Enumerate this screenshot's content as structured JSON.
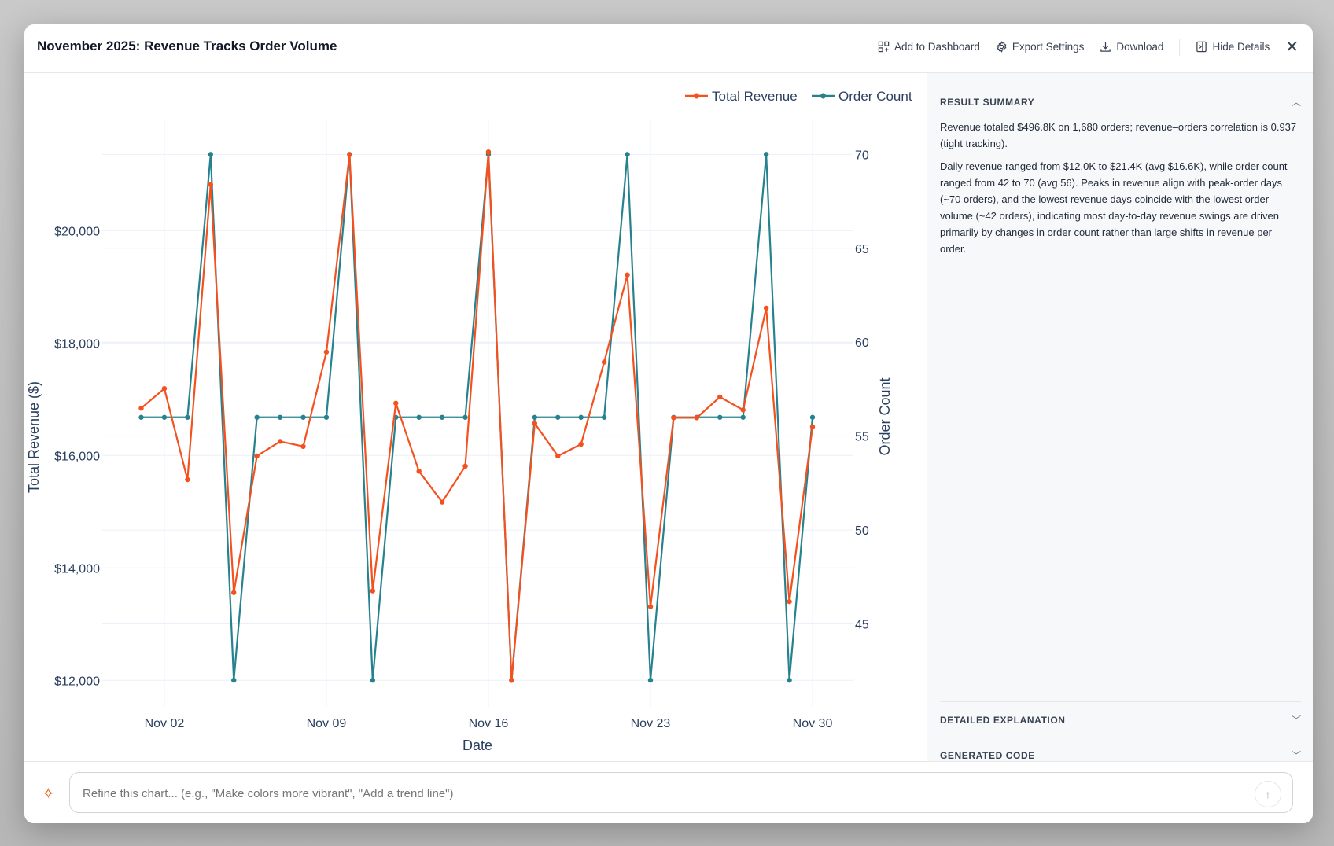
{
  "modal": {
    "title": "November 2025: Revenue Tracks Order Volume",
    "actions": {
      "add_to_dashboard": "Add to Dashboard",
      "export_settings": "Export Settings",
      "download": "Download",
      "hide_details": "Hide Details"
    },
    "close_icon": "close-icon"
  },
  "sidebar": {
    "result_summary": {
      "heading": "RESULT SUMMARY",
      "paragraphs": [
        "Revenue totaled $496.8K on 1,680 orders; revenue–orders correlation is 0.937 (tight tracking).",
        "Daily revenue ranged from $12.0K to $21.4K (avg $16.6K), while order count ranged from 42 to 70 (avg 56). Peaks in revenue align with peak-order days (~70 orders), and the lowest revenue days coincide with the lowest order volume (~42 orders), indicating most day-to-day revenue swings are driven primarily by changes in order count rather than large shifts in revenue per order."
      ]
    },
    "detailed_explanation": "DETAILED EXPLANATION",
    "generated_code": "GENERATED CODE"
  },
  "refine": {
    "placeholder": "Refine this chart... (e.g., \"Make colors more vibrant\", \"Add a trend line\")",
    "value": ""
  },
  "chart_data": {
    "type": "line",
    "xlabel": "Date",
    "ylabel": "Total Revenue ($)",
    "y2label": "Order Count",
    "x": [
      "2025-11-01",
      "2025-11-02",
      "2025-11-03",
      "2025-11-04",
      "2025-11-05",
      "2025-11-06",
      "2025-11-07",
      "2025-11-08",
      "2025-11-09",
      "2025-11-10",
      "2025-11-11",
      "2025-11-12",
      "2025-11-13",
      "2025-11-14",
      "2025-11-15",
      "2025-11-16",
      "2025-11-17",
      "2025-11-18",
      "2025-11-19",
      "2025-11-20",
      "2025-11-21",
      "2025-11-22",
      "2025-11-23",
      "2025-11-24",
      "2025-11-25",
      "2025-11-26",
      "2025-11-27",
      "2025-11-28",
      "2025-11-29",
      "2025-11-30"
    ],
    "x_ticks": [
      {
        "day": 2,
        "label": "Nov 02"
      },
      {
        "day": 9,
        "label": "Nov 09"
      },
      {
        "day": 16,
        "label": "Nov 16"
      },
      {
        "day": 23,
        "label": "Nov 23"
      },
      {
        "day": 30,
        "label": "Nov 30"
      }
    ],
    "y_ticks": [
      {
        "value": 12000,
        "label": "$12,000"
      },
      {
        "value": 14000,
        "label": "$14,000"
      },
      {
        "value": 16000,
        "label": "$16,000"
      },
      {
        "value": 18000,
        "label": "$18,000"
      },
      {
        "value": 20000,
        "label": "$20,000"
      }
    ],
    "y2_ticks": [
      {
        "value": 45,
        "label": "45"
      },
      {
        "value": 50,
        "label": "50"
      },
      {
        "value": 55,
        "label": "55"
      },
      {
        "value": 60,
        "label": "60"
      },
      {
        "value": 65,
        "label": "65"
      },
      {
        "value": 70,
        "label": "70"
      }
    ],
    "ylim": [
      11500,
      21990
    ],
    "y2lim": [
      40.5,
      71.9
    ],
    "grid": true,
    "legend": "top-right",
    "series": [
      {
        "name": "Total Revenue",
        "axis": "left",
        "color": "#f4511e",
        "values": [
          16840,
          17190,
          15570,
          20820,
          13560,
          15990,
          16250,
          16160,
          17840,
          21350,
          13590,
          16930,
          15720,
          15170,
          15810,
          21400,
          12000,
          16570,
          15990,
          16200,
          17660,
          19210,
          13310,
          16670,
          16670,
          17040,
          16810,
          18620,
          13400,
          16510
        ]
      },
      {
        "name": "Order Count",
        "axis": "right",
        "color": "#26828e",
        "values": [
          56,
          56,
          56,
          70,
          42,
          56,
          56,
          56,
          56,
          70,
          42,
          56,
          56,
          56,
          56,
          70,
          42,
          56,
          56,
          56,
          56,
          70,
          42,
          56,
          56,
          56,
          56,
          70,
          42,
          56
        ]
      }
    ]
  }
}
